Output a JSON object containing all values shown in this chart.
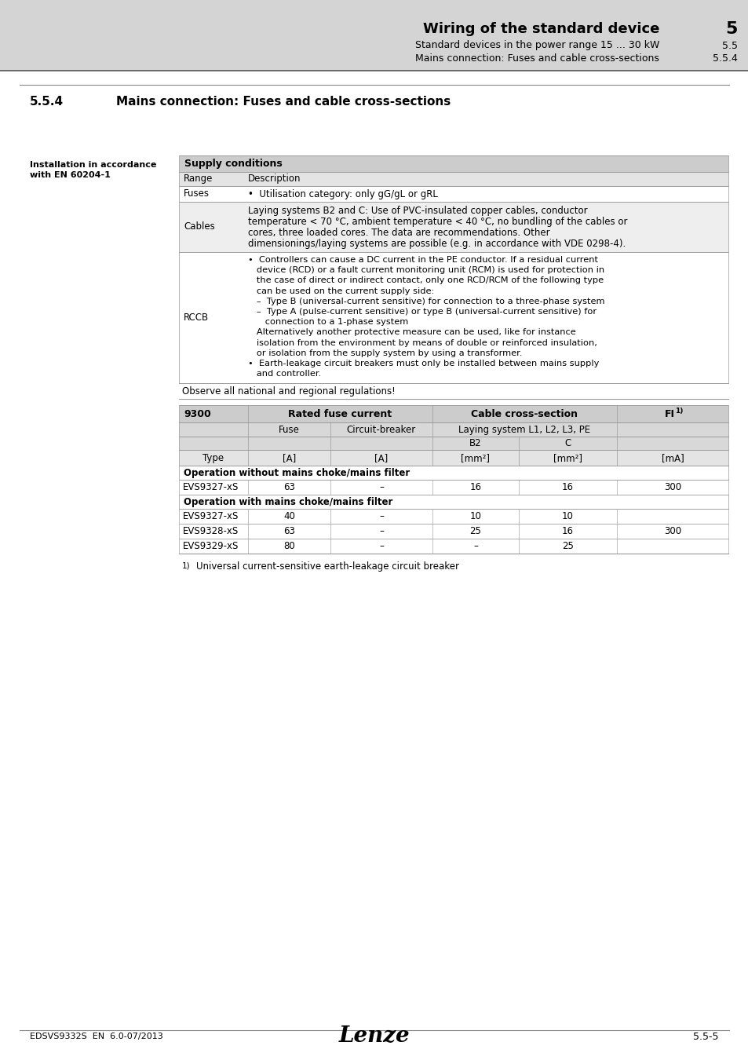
{
  "bg_color": "#d4d4d4",
  "header_bg": "#d4d4d4",
  "white": "#ffffff",
  "table_header_bg": "#c8c8c8",
  "table_subhdr_bg": "#d8d8d8",
  "table_alt_bg": "#eeeeee",
  "title_bold": "Wiring of the standard device",
  "title_num": "5",
  "sub1_text": "Standard devices in the power range 15 ... 30 kW",
  "sub1_num": "5.5",
  "sub2_text": "Mains connection: Fuses and cable cross-sections",
  "sub2_num": "5.5.4",
  "section_num": "5.5.4",
  "section_title": "Mains connection: Fuses and cable cross-sections",
  "left_note_line1": "Installation in accordance",
  "left_note_line2": "with EN 60204-1",
  "supply_header": "Supply conditions",
  "observe_text": "Observe all national and regional regulations!",
  "table2_col0": "9300",
  "table2_col1": "Rated fuse current",
  "table2_col2": "Cable cross-section",
  "table2_col3": "FI",
  "table2_col3_sup": "1)",
  "op_without": "Operation without mains choke/mains filter",
  "op_with": "Operation with mains choke/mains filter",
  "footnote_sup": "1)",
  "footnote_text": "Universal current-sensitive earth-leakage circuit breaker",
  "footer_left": "EDSVS9332S  EN  6.0-07/2013",
  "footer_center": "Lenze",
  "footer_right": "5.5-5",
  "rows_without": [
    [
      "EVS9327-xS",
      "63",
      "–",
      "16",
      "16",
      "300"
    ]
  ],
  "rows_with": [
    [
      "EVS9327-xS",
      "40",
      "–",
      "10",
      "10",
      ""
    ],
    [
      "EVS9328-xS",
      "63",
      "–",
      "25",
      "16",
      "300"
    ],
    [
      "EVS9329-xS",
      "80",
      "–",
      "–",
      "25",
      ""
    ]
  ]
}
